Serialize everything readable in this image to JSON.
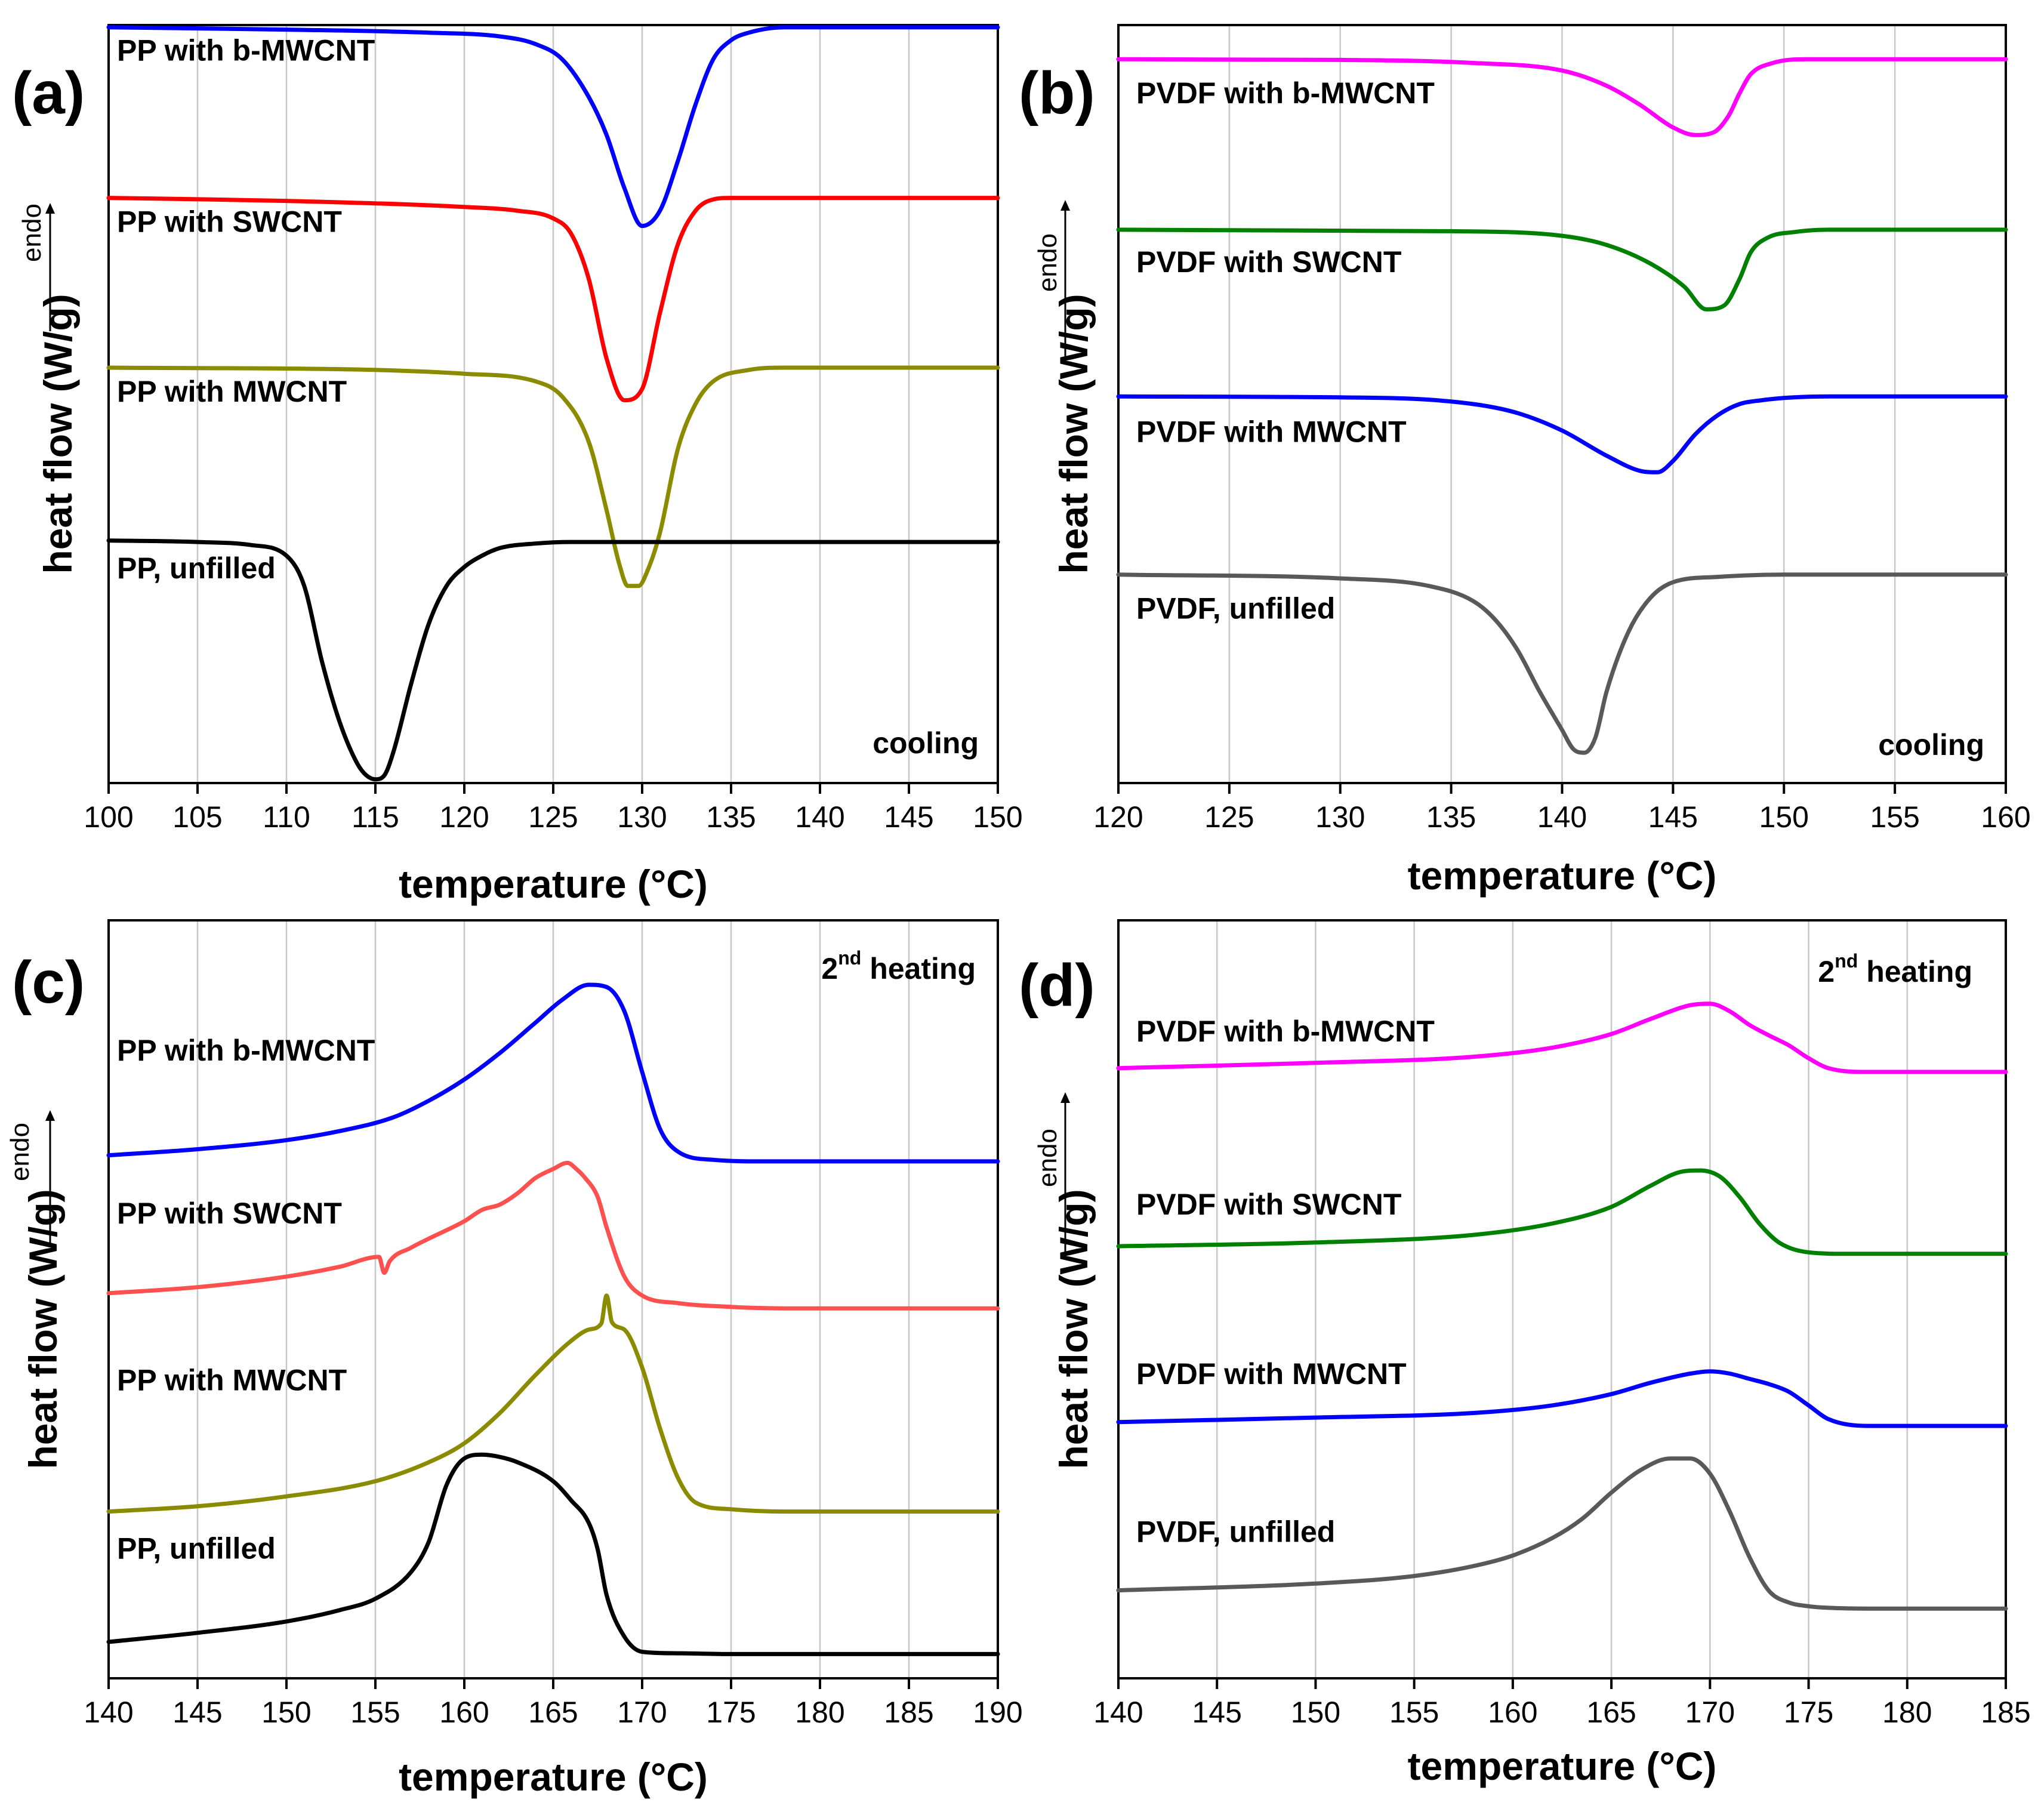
{
  "chart_data": [
    {
      "type": "line",
      "panel_label": "(a)",
      "annotation": "cooling",
      "xlabel": "temperature (°C)",
      "ylabel": "heat flow (W/g)",
      "endo_label": "endo",
      "xlim": [
        100,
        150
      ],
      "ylim": [
        0,
        1
      ],
      "xticks": [
        100,
        105,
        110,
        115,
        120,
        125,
        130,
        135,
        140,
        145,
        150
      ],
      "grid": true,
      "series": [
        {
          "name": "PP with b-MWCNT",
          "color": "#0000ff",
          "label_y": 0.953,
          "x": [
            100,
            110,
            118,
            122,
            124,
            125.5,
            127,
            128,
            129,
            130,
            131,
            132,
            133,
            134,
            135,
            136,
            138,
            140,
            150
          ],
          "y": [
            0.997,
            0.994,
            0.99,
            0.985,
            0.975,
            0.955,
            0.905,
            0.855,
            0.785,
            0.735,
            0.755,
            0.82,
            0.895,
            0.955,
            0.98,
            0.99,
            0.997,
            0.997,
            0.997
          ]
        },
        {
          "name": "PP with SWCNT",
          "color": "#ff0000",
          "label_y": 0.727,
          "x": [
            100,
            110,
            120,
            123,
            125,
            126,
            127,
            128,
            129,
            130,
            131,
            132,
            133,
            134,
            135,
            150
          ],
          "y": [
            0.772,
            0.768,
            0.76,
            0.755,
            0.745,
            0.725,
            0.665,
            0.56,
            0.505,
            0.52,
            0.62,
            0.71,
            0.755,
            0.77,
            0.772,
            0.772
          ]
        },
        {
          "name": "PP with MWCNT",
          "color": "#8b8b00",
          "label_y": 0.503,
          "x": [
            100,
            115,
            120,
            124,
            125.5,
            127,
            128,
            128.7,
            129.2,
            129.8,
            130.3,
            131,
            132,
            133,
            134,
            136,
            138,
            140,
            150
          ],
          "y": [
            0.548,
            0.545,
            0.54,
            0.53,
            0.51,
            0.45,
            0.36,
            0.29,
            0.26,
            0.26,
            0.28,
            0.33,
            0.44,
            0.5,
            0.53,
            0.545,
            0.548,
            0.548,
            0.548
          ]
        },
        {
          "name": "PP, unfilled",
          "color": "#000000",
          "label_y": 0.27,
          "x": [
            100,
            105,
            108,
            110,
            111,
            112,
            113,
            114,
            114.5,
            115,
            115.5,
            116,
            117,
            118,
            119,
            120,
            121,
            122,
            124,
            126,
            130,
            150
          ],
          "y": [
            0.32,
            0.318,
            0.314,
            0.3,
            0.26,
            0.16,
            0.08,
            0.025,
            0.01,
            0.005,
            0.01,
            0.04,
            0.13,
            0.21,
            0.26,
            0.285,
            0.3,
            0.31,
            0.316,
            0.318,
            0.318,
            0.318
          ]
        }
      ]
    },
    {
      "type": "line",
      "panel_label": "(b)",
      "annotation": "cooling",
      "xlabel": "temperature (°C)",
      "ylabel": "heat flow (W/g)",
      "endo_label": "endo",
      "xlim": [
        120,
        160
      ],
      "ylim": [
        0,
        1
      ],
      "xticks": [
        120,
        125,
        130,
        135,
        140,
        145,
        150,
        155,
        160
      ],
      "grid": true,
      "series": [
        {
          "name": "PVDF with b-MWCNT",
          "color": "#ff00ff",
          "label_y": 0.897,
          "x": [
            120,
            130,
            136,
            140,
            142,
            143.5,
            145,
            146,
            146.8,
            147.5,
            148,
            148.5,
            149.5,
            151,
            160
          ],
          "y": [
            0.955,
            0.954,
            0.95,
            0.94,
            0.92,
            0.895,
            0.865,
            0.855,
            0.858,
            0.88,
            0.91,
            0.935,
            0.95,
            0.955,
            0.955
          ]
        },
        {
          "name": "PVDF with SWCNT",
          "color": "#008000",
          "label_y": 0.674,
          "x": [
            120,
            135,
            140,
            142,
            144,
            145.5,
            146.5,
            147.3,
            148,
            148.5,
            149.3,
            150.5,
            152,
            160
          ],
          "y": [
            0.73,
            0.728,
            0.722,
            0.71,
            0.685,
            0.655,
            0.625,
            0.63,
            0.665,
            0.7,
            0.72,
            0.727,
            0.73,
            0.73
          ]
        },
        {
          "name": "PVDF with MWCNT",
          "color": "#0000ff",
          "label_y": 0.45,
          "x": [
            120,
            132,
            136,
            138,
            140,
            142,
            143.5,
            144.3,
            145,
            146,
            147,
            148,
            149,
            150,
            152,
            160
          ],
          "y": [
            0.51,
            0.508,
            0.5,
            0.488,
            0.465,
            0.432,
            0.412,
            0.41,
            0.425,
            0.46,
            0.485,
            0.5,
            0.505,
            0.508,
            0.51,
            0.51
          ]
        },
        {
          "name": "PVDF, unfilled",
          "color": "#595959",
          "label_y": 0.217,
          "x": [
            120,
            130,
            134,
            136,
            137,
            138,
            139,
            140,
            140.5,
            141,
            141.5,
            142,
            143,
            144,
            145,
            147,
            150,
            160
          ],
          "y": [
            0.275,
            0.27,
            0.26,
            0.24,
            0.215,
            0.175,
            0.12,
            0.07,
            0.045,
            0.04,
            0.06,
            0.12,
            0.2,
            0.245,
            0.265,
            0.272,
            0.275,
            0.275
          ]
        }
      ]
    },
    {
      "type": "line",
      "panel_label": "(c)",
      "annotation_main": "2",
      "annotation_sup": "nd",
      "annotation_rest": " heating",
      "xlabel": "temperature (°C)",
      "ylabel": "heat flow (W/g)",
      "endo_label": "endo",
      "xlim": [
        140,
        190
      ],
      "ylim": [
        0,
        1
      ],
      "xticks": [
        140,
        145,
        150,
        155,
        160,
        165,
        170,
        175,
        180,
        185,
        190
      ],
      "grid": true,
      "series": [
        {
          "name": "PP with b-MWCNT",
          "color": "#0000ff",
          "label_y": 0.815,
          "x": [
            140,
            145,
            150,
            153,
            156,
            158,
            160,
            162,
            164,
            165.5,
            167,
            168,
            169,
            170,
            171,
            172,
            174,
            177,
            190
          ],
          "y": [
            0.69,
            0.698,
            0.71,
            0.722,
            0.74,
            0.762,
            0.79,
            0.825,
            0.865,
            0.895,
            0.915,
            0.912,
            0.88,
            0.8,
            0.725,
            0.695,
            0.684,
            0.682,
            0.682
          ]
        },
        {
          "name": "PP with SWCNT",
          "color": "#ff5050",
          "label_y": 0.6,
          "x": [
            140,
            145,
            150,
            153,
            155.2,
            155.5,
            155.8,
            157,
            158,
            160,
            161,
            162,
            163,
            164,
            165,
            165.8,
            166.3,
            166.8,
            167.5,
            168,
            169,
            170,
            172,
            175,
            178,
            190
          ],
          "y": [
            0.508,
            0.516,
            0.53,
            0.543,
            0.556,
            0.535,
            0.55,
            0.568,
            0.58,
            0.603,
            0.618,
            0.625,
            0.64,
            0.66,
            0.672,
            0.68,
            0.672,
            0.66,
            0.635,
            0.595,
            0.53,
            0.505,
            0.495,
            0.49,
            0.488,
            0.488
          ]
        },
        {
          "name": "PP with MWCNT",
          "color": "#8b8b00",
          "label_y": 0.38,
          "x": [
            140,
            145,
            150,
            155,
            158,
            160,
            162,
            164,
            166,
            167,
            167.7,
            168,
            168.3,
            169,
            170,
            171,
            172,
            173,
            175,
            178,
            190
          ],
          "y": [
            0.22,
            0.227,
            0.24,
            0.26,
            0.285,
            0.31,
            0.35,
            0.4,
            0.445,
            0.46,
            0.468,
            0.505,
            0.47,
            0.46,
            0.41,
            0.33,
            0.265,
            0.232,
            0.223,
            0.22,
            0.22
          ]
        },
        {
          "name": "PP, unfilled",
          "color": "#000000",
          "label_y": 0.158,
          "x": [
            140,
            145,
            150,
            153,
            155,
            157,
            158,
            159,
            160,
            161,
            162,
            163,
            165,
            166,
            167,
            167.5,
            168,
            169,
            170,
            172,
            175,
            190
          ],
          "y": [
            0.048,
            0.06,
            0.075,
            0.09,
            0.105,
            0.14,
            0.18,
            0.255,
            0.29,
            0.295,
            0.292,
            0.285,
            0.26,
            0.235,
            0.205,
            0.17,
            0.11,
            0.055,
            0.035,
            0.033,
            0.032,
            0.032
          ]
        }
      ]
    },
    {
      "type": "line",
      "panel_label": "(d)",
      "annotation_main": "2",
      "annotation_sup": "nd",
      "annotation_rest": " heating",
      "xlabel": "temperature (°C)",
      "ylabel": "heat flow (W/g)",
      "endo_label": "endo",
      "xlim": [
        140,
        185
      ],
      "ylim": [
        0,
        1
      ],
      "xticks": [
        140,
        145,
        150,
        155,
        160,
        165,
        170,
        175,
        180,
        185
      ],
      "grid": true,
      "series": [
        {
          "name": "PVDF with b-MWCNT",
          "color": "#ff00ff",
          "label_y": 0.84,
          "x": [
            140,
            150,
            158,
            162,
            165,
            167,
            169,
            170,
            171,
            172,
            173,
            174,
            175,
            176,
            178,
            185
          ],
          "y": [
            0.805,
            0.812,
            0.82,
            0.832,
            0.85,
            0.87,
            0.888,
            0.89,
            0.88,
            0.862,
            0.848,
            0.835,
            0.818,
            0.805,
            0.8,
            0.8
          ]
        },
        {
          "name": "PVDF with SWCNT",
          "color": "#008000",
          "label_y": 0.612,
          "x": [
            140,
            150,
            158,
            162,
            165,
            167,
            168.5,
            169.5,
            170.5,
            171.5,
            172.5,
            173.5,
            175,
            177,
            185
          ],
          "y": [
            0.57,
            0.575,
            0.585,
            0.6,
            0.622,
            0.65,
            0.668,
            0.67,
            0.662,
            0.635,
            0.6,
            0.575,
            0.562,
            0.56,
            0.56
          ]
        },
        {
          "name": "PVDF with MWCNT",
          "color": "#0000ff",
          "label_y": 0.388,
          "x": [
            140,
            150,
            158,
            162,
            165,
            167,
            169,
            170,
            171,
            172,
            173,
            174,
            175,
            176,
            178,
            185
          ],
          "y": [
            0.338,
            0.344,
            0.35,
            0.36,
            0.375,
            0.39,
            0.402,
            0.405,
            0.402,
            0.395,
            0.388,
            0.378,
            0.36,
            0.342,
            0.333,
            0.333
          ]
        },
        {
          "name": "PVDF, unfilled",
          "color": "#595959",
          "label_y": 0.18,
          "x": [
            140,
            150,
            155,
            158,
            160,
            162,
            163.5,
            165,
            166.5,
            168,
            169,
            170,
            171,
            172,
            173,
            174,
            175,
            176,
            178,
            185
          ],
          "y": [
            0.116,
            0.125,
            0.135,
            0.148,
            0.162,
            0.185,
            0.21,
            0.245,
            0.275,
            0.29,
            0.29,
            0.27,
            0.22,
            0.16,
            0.115,
            0.1,
            0.095,
            0.093,
            0.092,
            0.092
          ]
        }
      ]
    }
  ]
}
